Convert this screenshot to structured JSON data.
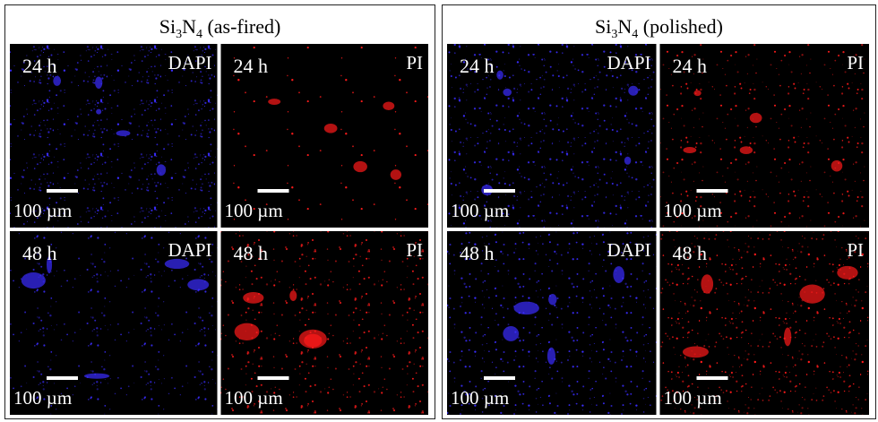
{
  "panels": [
    {
      "title": [
        "Si",
        "3",
        "N",
        "4",
        " (as-fired)"
      ],
      "images": [
        {
          "time": "24 h",
          "stain": "DAPI",
          "scale": "100 µm",
          "color": "#3a2cff"
        },
        {
          "time": "24 h",
          "stain": "PI",
          "scale": "100 µm",
          "color": "#ff1a1a"
        },
        {
          "time": "48 h",
          "stain": "DAPI",
          "scale": "100 µm",
          "color": "#3a2cff"
        },
        {
          "time": "48 h",
          "stain": "PI",
          "scale": "100 µm",
          "color": "#ff1a1a"
        }
      ]
    },
    {
      "title": [
        "Si",
        "3",
        "N",
        "4",
        " (polished)"
      ],
      "images": [
        {
          "time": "24 h",
          "stain": "DAPI",
          "scale": "100 µm",
          "color": "#3a2cff"
        },
        {
          "time": "24 h",
          "stain": "PI",
          "scale": "100 µm",
          "color": "#ff1a1a"
        },
        {
          "time": "48 h",
          "stain": "DAPI",
          "scale": "100 µm",
          "color": "#3a2cff"
        },
        {
          "time": "48 h",
          "stain": "PI",
          "scale": "100 µm",
          "color": "#ff1a1a"
        }
      ]
    }
  ]
}
